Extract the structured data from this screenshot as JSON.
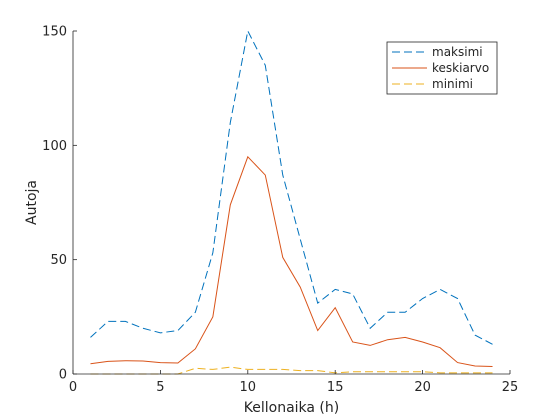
{
  "chart_data": {
    "type": "line",
    "title": "",
    "xlabel": "Kellonaika (h)",
    "ylabel": "Autoja",
    "xlim": [
      0,
      25
    ],
    "ylim": [
      0,
      150
    ],
    "xticks": [
      0,
      5,
      10,
      15,
      20,
      25
    ],
    "yticks": [
      0,
      50,
      100,
      150
    ],
    "grid": false,
    "legend_position": "top-right",
    "x": [
      1,
      2,
      3,
      4,
      5,
      6,
      7,
      8,
      9,
      10,
      11,
      12,
      13,
      14,
      15,
      16,
      17,
      18,
      19,
      20,
      21,
      22,
      23,
      24
    ],
    "series": [
      {
        "name": "maksimi",
        "color": "#0072BD",
        "dash": "dashed",
        "values": [
          16,
          23,
          23,
          20,
          18,
          19,
          27,
          53,
          110,
          150,
          135,
          87,
          59,
          31,
          37,
          35,
          20,
          27,
          27,
          33,
          37,
          33,
          17,
          13
        ]
      },
      {
        "name": "keskiarvo",
        "color": "#D95319",
        "dash": "solid",
        "values": [
          4.5,
          5.5,
          5.8,
          5.7,
          5,
          4.8,
          11,
          25,
          74,
          95,
          87,
          51,
          38,
          19,
          29,
          14,
          12.5,
          15,
          16,
          14,
          11.5,
          5,
          3.5,
          3.3
        ]
      },
      {
        "name": "minimi",
        "color": "#EDB120",
        "dash": "dashed",
        "values": [
          0,
          0,
          0,
          0,
          0,
          0,
          2.5,
          2,
          3,
          2,
          2,
          2,
          1.5,
          1.5,
          0.5,
          1,
          1,
          1,
          1,
          1,
          0.5,
          0.5,
          0.5,
          0.5
        ]
      }
    ]
  }
}
